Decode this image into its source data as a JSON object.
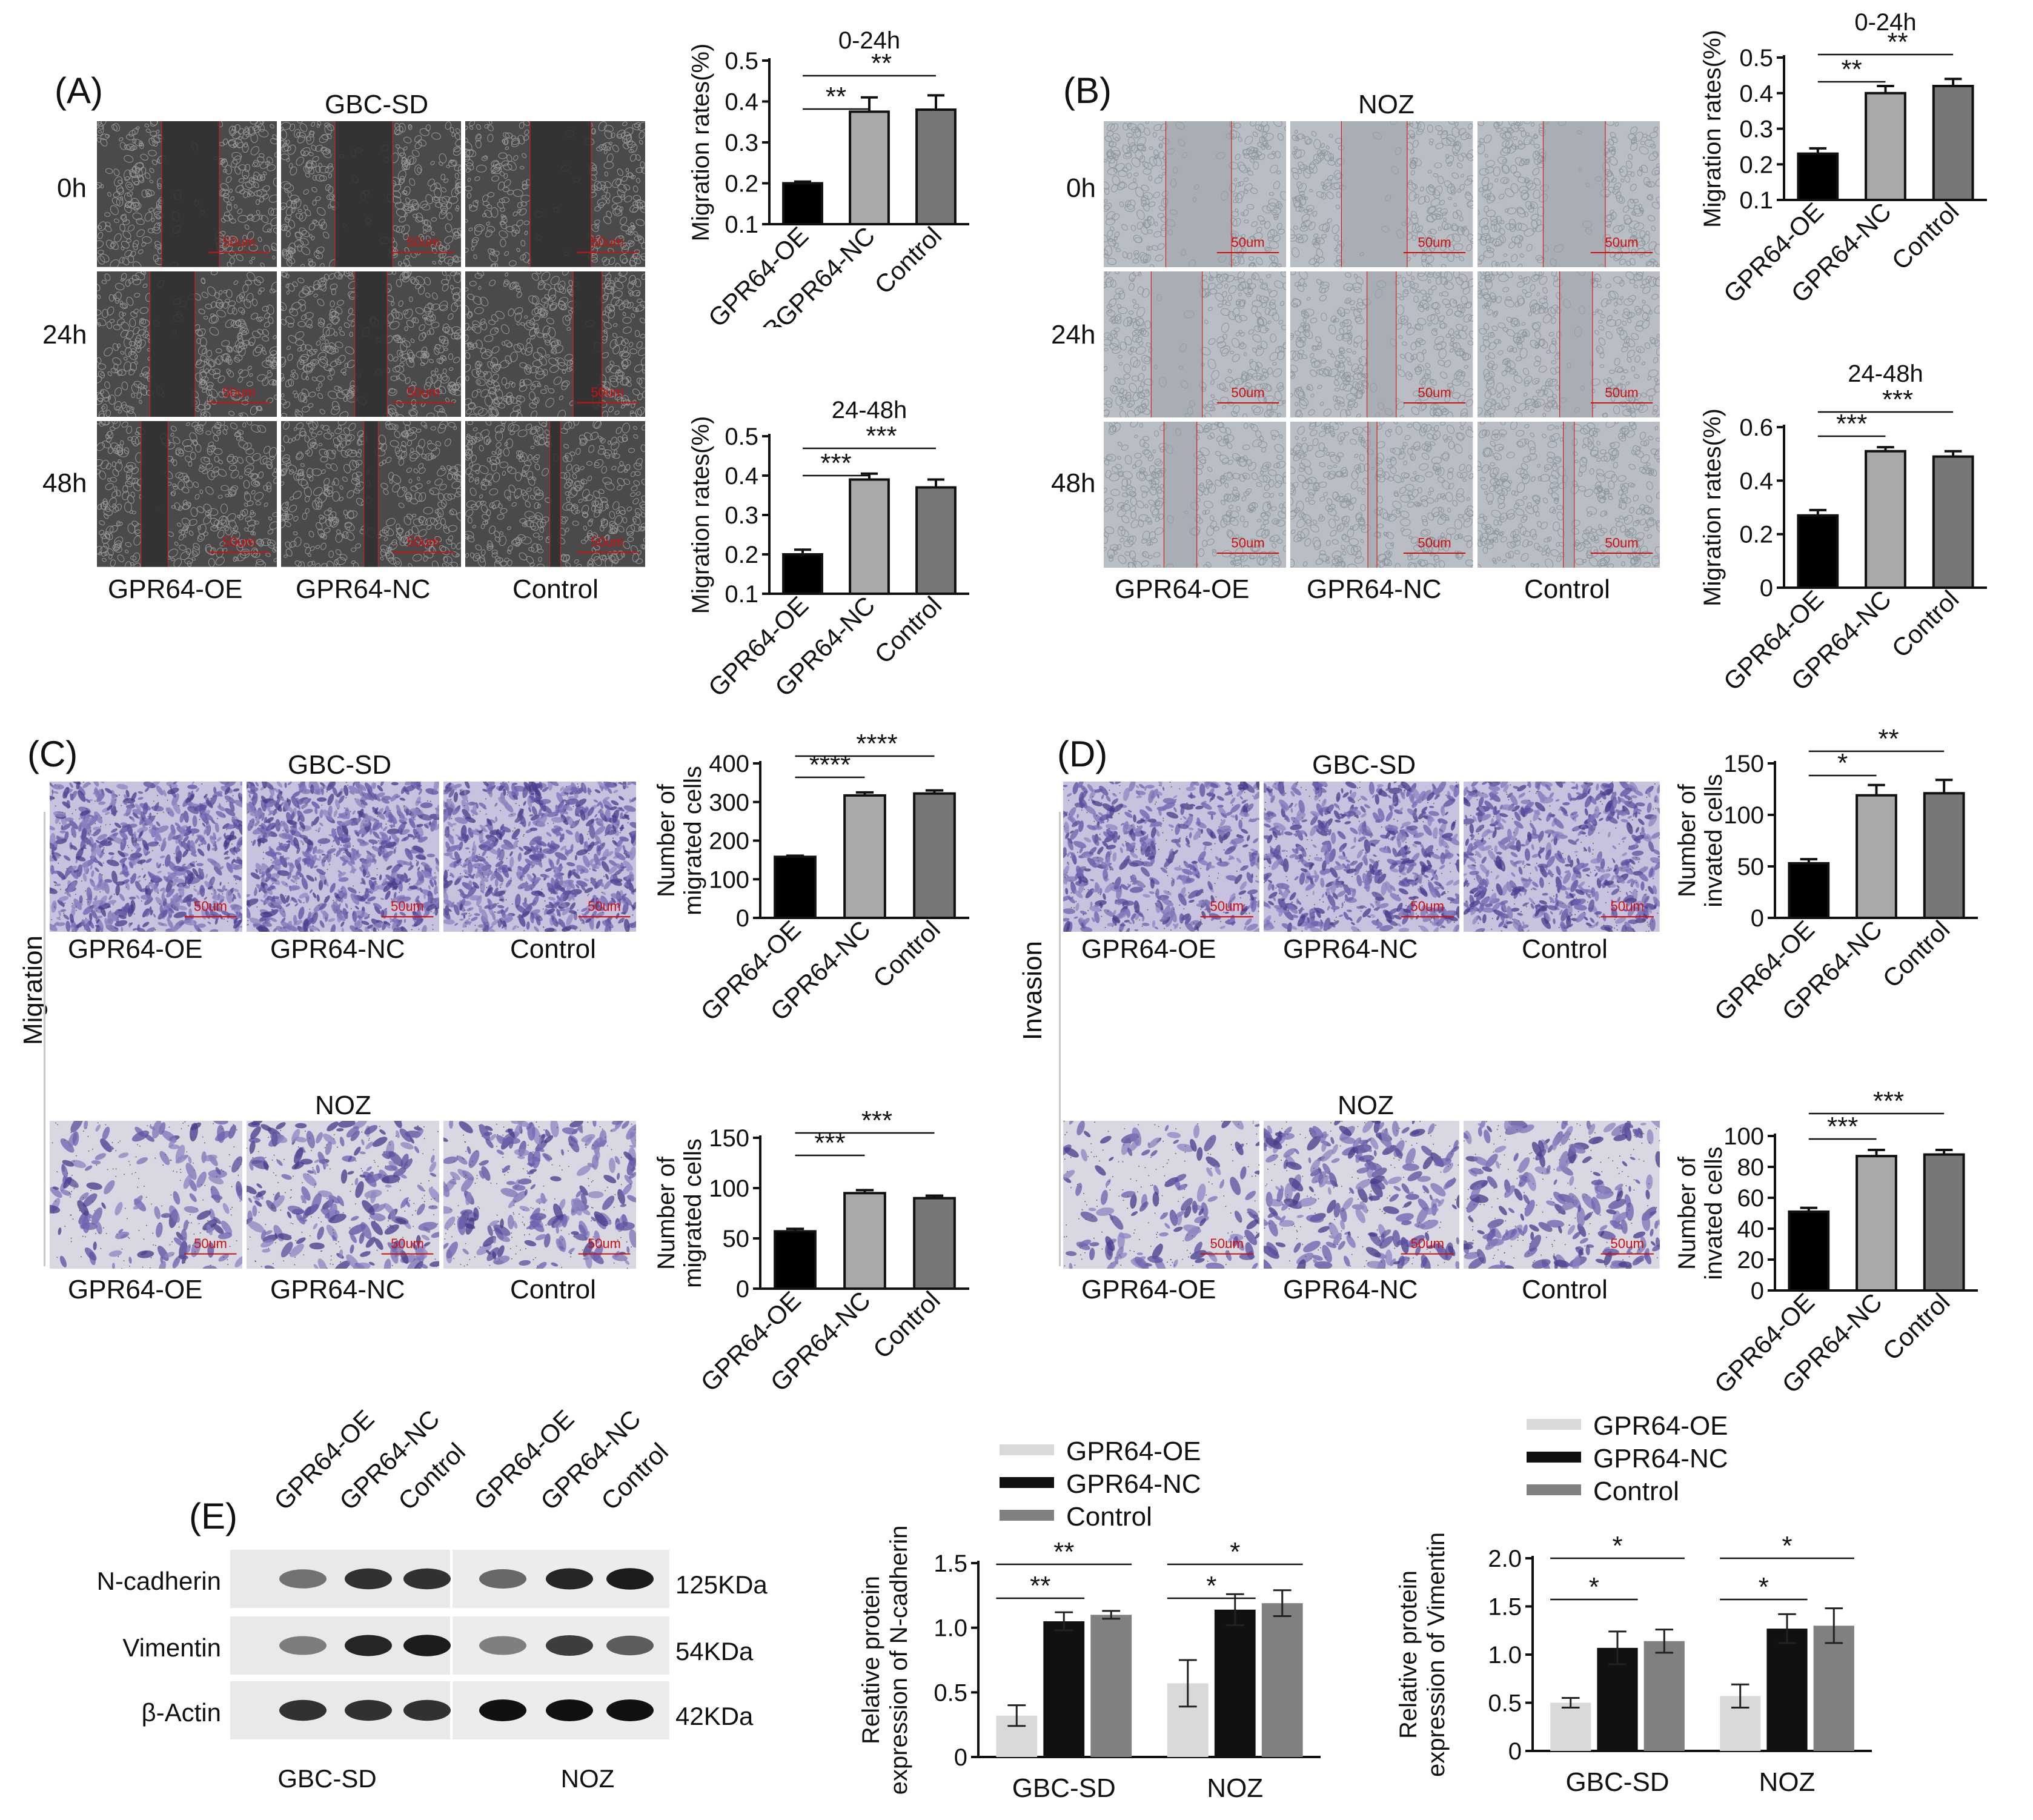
{
  "panels": {
    "A": {
      "label": "(A)",
      "cell_line": "GBC-SD",
      "rows": [
        "0h",
        "24h",
        "48h"
      ],
      "columns": [
        "GPR64-OE",
        "GPR64-NC",
        "Control"
      ],
      "scale_bar": "50um"
    },
    "B": {
      "label": "(B)",
      "cell_line": "NOZ",
      "rows": [
        "0h",
        "24h",
        "48h"
      ],
      "columns": [
        "GPR64-OE",
        "GPR64-NC",
        "Control"
      ],
      "scale_bar": "50um"
    },
    "C": {
      "label": "(C)",
      "side_label": "Migration",
      "top_cell_line": "GBC-SD",
      "bottom_cell_line": "NOZ",
      "columns": [
        "GPR64-OE",
        "GPR64-NC",
        "Control"
      ],
      "scale_bar": "50um"
    },
    "D": {
      "label": "(D)",
      "side_label": "Invasion",
      "top_cell_line": "GBC-SD",
      "bottom_cell_line": "NOZ",
      "columns": [
        "GPR64-OE",
        "GPR64-NC",
        "Control"
      ],
      "scale_bar": "50um"
    },
    "E": {
      "label": "(E)",
      "lanes": [
        "GPR64-OE",
        "GPR64-NC",
        "Control",
        "GPR64-OE",
        "GPR64-NC",
        "Control"
      ],
      "proteins": [
        "N-cadherin",
        "Vimentin",
        "β-Actin"
      ],
      "sizes": [
        "125KDa",
        "54KDa",
        "42KDa"
      ],
      "groups": [
        "GBC-SD",
        "NOZ"
      ]
    }
  },
  "colors": {
    "oe": "#000000",
    "nc": "#a9a9a9",
    "control": "#777777",
    "legend_oe": "#d9d9d9",
    "legend_nc": "#111111",
    "legend_control": "#808080",
    "scale_bar": "#cc1010",
    "scratch_line": "#d42020",
    "crystal_violet": "#5a4fa0",
    "phase_contrast_gbc": "#4a4a4a",
    "phase_contrast_noz": "#b9bec4"
  },
  "chart_data": [
    {
      "id": "A1",
      "type": "bar",
      "title": "0-24h",
      "ylabel": "Migration rates(%)",
      "categories": [
        "GPR64-OE",
        "BGPR64-NC",
        "Control"
      ],
      "values": [
        0.2,
        0.375,
        0.38
      ],
      "errors": [
        0.004,
        0.035,
        0.035
      ],
      "ylim": [
        0.1,
        0.5
      ],
      "yticks": [
        "0.1",
        "0.2",
        "0.3",
        "0.4",
        "0.5"
      ],
      "significance": [
        {
          "from": "GPR64-OE",
          "to": "BGPR64-NC",
          "mark": "**"
        },
        {
          "from": "GPR64-OE",
          "to": "Control",
          "mark": "**"
        }
      ]
    },
    {
      "id": "A2",
      "type": "bar",
      "title": "24-48h",
      "ylabel": "Migration rates(%)",
      "categories": [
        "GPR64-OE",
        "GPR64-NC",
        "Control"
      ],
      "values": [
        0.2,
        0.39,
        0.37
      ],
      "errors": [
        0.012,
        0.015,
        0.02
      ],
      "ylim": [
        0.1,
        0.5
      ],
      "yticks": [
        "0.1",
        "0.2",
        "0.3",
        "0.4",
        "0.5"
      ],
      "significance": [
        {
          "from": "GPR64-OE",
          "to": "GPR64-NC",
          "mark": "***"
        },
        {
          "from": "GPR64-OE",
          "to": "Control",
          "mark": "***"
        }
      ]
    },
    {
      "id": "B1",
      "type": "bar",
      "title": "0-24h",
      "ylabel": "Migration rates(%)",
      "categories": [
        "GPR64-OE",
        "GPR64-NC",
        "Control"
      ],
      "values": [
        0.23,
        0.4,
        0.42
      ],
      "errors": [
        0.015,
        0.02,
        0.02
      ],
      "ylim": [
        0.1,
        0.5
      ],
      "yticks": [
        "0.1",
        "0.2",
        "0.3",
        "0.4",
        "0.5"
      ],
      "significance": [
        {
          "from": "GPR64-OE",
          "to": "GPR64-NC",
          "mark": "**"
        },
        {
          "from": "GPR64-OE",
          "to": "Control",
          "mark": "**"
        }
      ]
    },
    {
      "id": "B2",
      "type": "bar",
      "title": "24-48h",
      "ylabel": "Migration rates(%)",
      "categories": [
        "GPR64-OE",
        "GPR64-NC",
        "Control"
      ],
      "values": [
        0.27,
        0.51,
        0.49
      ],
      "errors": [
        0.02,
        0.015,
        0.02
      ],
      "ylim": [
        0,
        0.6
      ],
      "yticks": [
        "0",
        "0.2",
        "0.4",
        "0.6"
      ],
      "significance": [
        {
          "from": "GPR64-OE",
          "to": "GPR64-NC",
          "mark": "***"
        },
        {
          "from": "GPR64-OE",
          "to": "Control",
          "mark": "***"
        }
      ]
    },
    {
      "id": "C1",
      "type": "bar",
      "ylabel": "Number of migrated cells",
      "categories": [
        "GPR64-OE",
        "GPR64-NC",
        "Control"
      ],
      "values": [
        158,
        317,
        322
      ],
      "errors": [
        3,
        8,
        8
      ],
      "ylim": [
        0,
        400
      ],
      "yticks": [
        "0",
        "100",
        "200",
        "300",
        "400"
      ],
      "significance": [
        {
          "from": "GPR64-OE",
          "to": "GPR64-NC",
          "mark": "****"
        },
        {
          "from": "GPR64-OE",
          "to": "Control",
          "mark": "****"
        }
      ]
    },
    {
      "id": "C2",
      "type": "bar",
      "ylabel": "Number of migrated cells",
      "categories": [
        "GPR64-OE",
        "GPR64-NC",
        "Control"
      ],
      "values": [
        57,
        95,
        90
      ],
      "errors": [
        2.5,
        3,
        2.5
      ],
      "ylim": [
        0,
        150
      ],
      "yticks": [
        "0",
        "50",
        "100",
        "150"
      ],
      "significance": [
        {
          "from": "GPR64-OE",
          "to": "GPR64-NC",
          "mark": "***"
        },
        {
          "from": "GPR64-OE",
          "to": "Control",
          "mark": "***"
        }
      ]
    },
    {
      "id": "D1",
      "type": "bar",
      "ylabel": "Number of invated cells",
      "categories": [
        "GPR64-OE",
        "GPR64-NC",
        "Control"
      ],
      "values": [
        53,
        119,
        121
      ],
      "errors": [
        4,
        10,
        13
      ],
      "ylim": [
        0,
        150
      ],
      "yticks": [
        "0",
        "50",
        "100",
        "150"
      ],
      "significance": [
        {
          "from": "GPR64-OE",
          "to": "GPR64-NC",
          "mark": "*"
        },
        {
          "from": "GPR64-OE",
          "to": "Control",
          "mark": "**"
        }
      ]
    },
    {
      "id": "D2",
      "type": "bar",
      "ylabel": "Number of invated cells",
      "categories": [
        "GPR64-OE",
        "GPR64-NC",
        "Control"
      ],
      "values": [
        51,
        87,
        88
      ],
      "errors": [
        2.5,
        4,
        3
      ],
      "ylim": [
        0,
        100
      ],
      "yticks": [
        "0",
        "20",
        "40",
        "60",
        "80",
        "100"
      ],
      "significance": [
        {
          "from": "GPR64-OE",
          "to": "GPR64-NC",
          "mark": "***"
        },
        {
          "from": "GPR64-OE",
          "to": "Control",
          "mark": "***"
        }
      ]
    },
    {
      "id": "E1",
      "type": "bar",
      "ylabel": "Relative protein expression of N-cadherin",
      "categories": [
        "GBC-SD",
        "NOZ"
      ],
      "series": [
        {
          "name": "GPR64-OE",
          "values": [
            0.32,
            0.57
          ],
          "errors": [
            0.08,
            0.18
          ]
        },
        {
          "name": "GPR64-NC",
          "values": [
            1.05,
            1.14
          ],
          "errors": [
            0.07,
            0.12
          ]
        },
        {
          "name": "Control",
          "values": [
            1.1,
            1.19
          ],
          "errors": [
            0.03,
            0.1
          ]
        }
      ],
      "ylim": [
        0,
        1.5
      ],
      "yticks": [
        "0",
        "0.5",
        "1.0",
        "1.5"
      ],
      "legend": "top-left",
      "significance": [
        {
          "group": "GBC-SD",
          "to": "GPR64-NC",
          "mark": "**"
        },
        {
          "group": "GBC-SD",
          "to": "Control",
          "mark": "**"
        },
        {
          "group": "NOZ",
          "to": "GPR64-NC",
          "mark": "*"
        },
        {
          "group": "NOZ",
          "to": "Control",
          "mark": "*"
        }
      ]
    },
    {
      "id": "E2",
      "type": "bar",
      "ylabel": "Relative protein expression of Vimentin",
      "categories": [
        "GBC-SD",
        "NOZ"
      ],
      "series": [
        {
          "name": "GPR64-OE",
          "values": [
            0.5,
            0.57
          ],
          "errors": [
            0.05,
            0.12
          ]
        },
        {
          "name": "GPR64-NC",
          "values": [
            1.07,
            1.27
          ],
          "errors": [
            0.17,
            0.15
          ]
        },
        {
          "name": "Control",
          "values": [
            1.14,
            1.3
          ],
          "errors": [
            0.12,
            0.18
          ]
        }
      ],
      "ylim": [
        0,
        2.0
      ],
      "yticks": [
        "0",
        "0.5",
        "1.0",
        "1.5",
        "2.0"
      ],
      "legend": "top-left",
      "significance": [
        {
          "group": "GBC-SD",
          "to": "GPR64-NC",
          "mark": "*"
        },
        {
          "group": "GBC-SD",
          "to": "Control",
          "mark": "*"
        },
        {
          "group": "NOZ",
          "to": "GPR64-NC",
          "mark": "*"
        },
        {
          "group": "NOZ",
          "to": "Control",
          "mark": "*"
        }
      ]
    }
  ]
}
